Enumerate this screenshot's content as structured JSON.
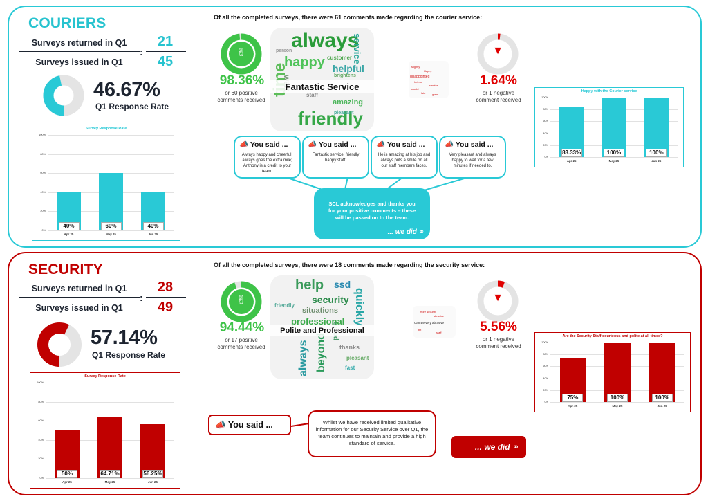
{
  "couriers": {
    "title": "COURIERS",
    "returned_label": "Surveys returned in Q1",
    "issued_label": "Surveys issued in Q1",
    "colon": ":",
    "returned": "21",
    "issued": "45",
    "rate": "46.67%",
    "rate_label": "Q1 Response Rate",
    "rate_value": 46.67,
    "intro": "Of all the completed surveys, there were 61 comments made regarding the courier service:",
    "positive_pct": "98.36%",
    "positive_sub1": "or 60 positive",
    "positive_sub2": "comments received",
    "negative_pct": "1.64%",
    "negative_sub1": "or 1 negative",
    "negative_sub2": "comment received",
    "cloud_banner": "Fantastic Service",
    "cloud_words": [
      "always",
      "happy",
      "time",
      "friendly",
      "helpful",
      "service",
      "amazing",
      "wait",
      "staff",
      "pleasant",
      "customer",
      "brightens",
      "person"
    ],
    "mini_cloud_words": [
      "slightly",
      "Happy",
      "disappointed",
      "helpful",
      "service",
      "would",
      "late",
      "great"
    ],
    "you_said_label": "You said ...",
    "quotes": [
      "Always happy and cheerful; always goes the extra mile; Anthony is a credit to your team.",
      "Fantastic service; friendly happy staff.",
      "He is amazing at his job and always puts a smile on all our staff members faces.",
      "Very pleasant and always happy to wait for a few minutes if needed to."
    ],
    "ack_text": "SCL acknowledges and thanks you for your positive comments – these will be passed on to the team.",
    "we_did": "... we did",
    "accent": "#29c9d6",
    "chart_left": {
      "title": "Survey Response Rate",
      "type": "bar",
      "categories": [
        "Apr 25",
        "May 25",
        "Jun 25"
      ],
      "values": [
        40,
        60,
        40
      ],
      "labels": [
        "40%",
        "60%",
        "40%"
      ],
      "yticks": [
        "100%",
        "80%",
        "60%",
        "40%",
        "20%",
        "0%"
      ],
      "ylim": [
        0,
        100
      ]
    },
    "chart_right": {
      "title": "Happy with the Courier service",
      "type": "bar",
      "categories": [
        "Apr 25",
        "May 25",
        "Jun 25"
      ],
      "values": [
        83.33,
        100,
        100
      ],
      "labels": [
        "83.33%",
        "100%",
        "100%"
      ],
      "yticks": [
        "100%",
        "80%",
        "60%",
        "40%",
        "20%",
        "0%"
      ],
      "ylim": [
        0,
        100
      ]
    }
  },
  "security": {
    "title": "SECURITY",
    "returned_label": "Surveys returned in Q1",
    "issued_label": "Surveys issued in Q1",
    "colon": ":",
    "returned": "28",
    "issued": "49",
    "rate": "57.14%",
    "rate_label": "Q1 Response Rate",
    "rate_value": 57.14,
    "intro": "Of all the completed surveys, there were 18 comments made regarding the security service:",
    "positive_pct": "94.44%",
    "positive_sub1": "or 17 positive",
    "positive_sub2": "comments received",
    "negative_pct": "5.56%",
    "negative_sub1": "or 1 negative",
    "negative_sub2": "comment received",
    "cloud_banner": "Polite and Professional",
    "cloud_words": [
      "help",
      "ssd",
      "security",
      "quickly",
      "situations",
      "professional",
      "always",
      "beyond",
      "polite",
      "thanks",
      "pleasant",
      "fast",
      "friendly"
    ],
    "mini_cloud_words": [
      "more security",
      "Can Be very abrasive",
      "abrasive",
      "bit",
      "staff"
    ],
    "you_said_label": "You said ...",
    "response_text": "Whilst we have received limited qualitative information for our Security Service over Q1, the team continues to maintain and provide a high standard of service.",
    "we_did": "... we did",
    "accent": "#c00000",
    "chart_left": {
      "title": "Survey Response Rate",
      "type": "bar",
      "categories": [
        "Apr 25",
        "May 25",
        "Jun 25"
      ],
      "values": [
        50,
        64.71,
        56.25
      ],
      "labels": [
        "50%",
        "64.71%",
        "56.25%"
      ],
      "yticks": [
        "100%",
        "80%",
        "60%",
        "40%",
        "20%",
        "0%"
      ],
      "ylim": [
        0,
        100
      ]
    },
    "chart_right": {
      "title": "Are the Security Staff courteous and polite at all times?",
      "type": "bar",
      "categories": [
        "Apr-25",
        "May-25",
        "Jun-25"
      ],
      "values": [
        75,
        100,
        100
      ],
      "labels": [
        "75%",
        "100%",
        "100%"
      ],
      "yticks": [
        "100%",
        "80%",
        "60%",
        "40%",
        "20%",
        "0%"
      ],
      "ylim": [
        0,
        100
      ]
    }
  }
}
